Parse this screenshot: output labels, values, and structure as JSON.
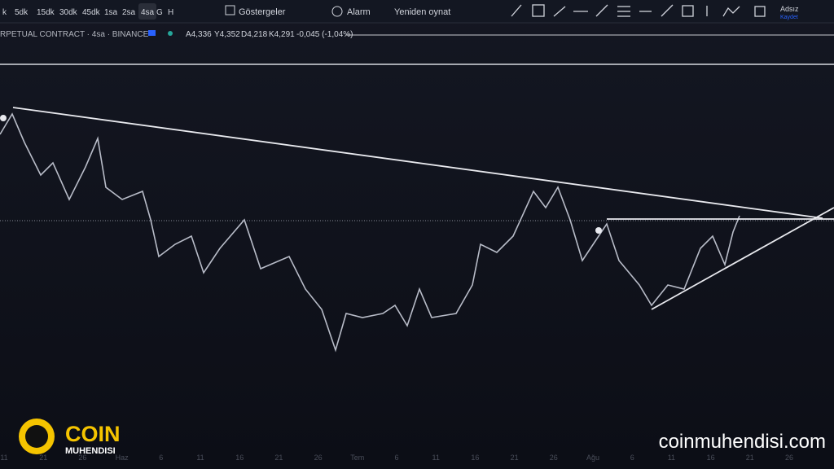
{
  "toolbar": {
    "intervals": [
      "k",
      "5dk",
      "15dk",
      "30dk",
      "45dk",
      "1sa",
      "2sa",
      "4sa",
      "G",
      "H"
    ],
    "indicators": "Göstergeler",
    "alarm": "Alarm",
    "replay": "Yeniden oynat",
    "layout_name": "Adsız",
    "save": "Kaydet"
  },
  "legend": {
    "symbol": "RPETUAL CONTRACT · 4sa · BINANCE",
    "open": "A4,336",
    "high": "Y4,352",
    "low": "D4,218",
    "close": "K4,291",
    "change": "-0,045 (-1,04%)"
  },
  "time_axis": [
    "11",
    "21",
    "26",
    "Haz",
    "6",
    "11",
    "16",
    "21",
    "26",
    "Tem",
    "6",
    "11",
    "16",
    "21",
    "26",
    "Ağu",
    "6",
    "11",
    "16",
    "21",
    "26"
  ],
  "branding": {
    "logo_top": "COIN",
    "logo_bottom": "MUHENDISI",
    "website": "coinmuhendisi.com"
  }
}
